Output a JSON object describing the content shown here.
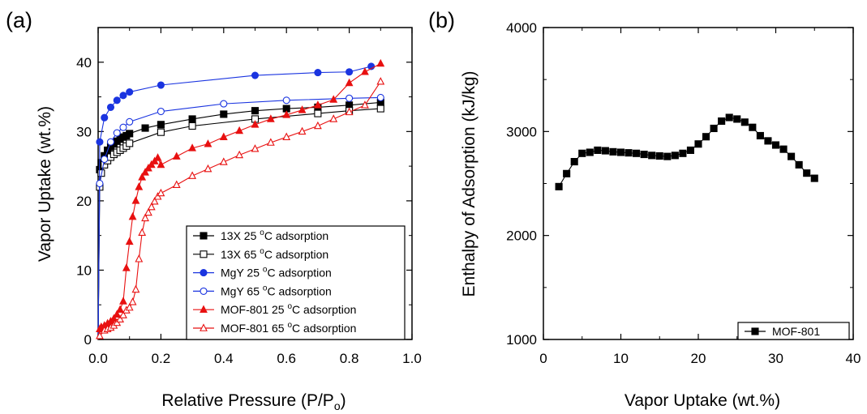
{
  "chart_data": [
    {
      "type": "scatter",
      "panel_label": "(a)",
      "xlabel": "Relative Pressure (P/P",
      "xlabel_sub": "o",
      "xlabel_suffix": ")",
      "ylabel": "Vapor Uptake (wt.%)",
      "xlim": [
        0.0,
        1.0
      ],
      "ylim": [
        0,
        45
      ],
      "xticks": [
        "0.0",
        "0.2",
        "0.4",
        "0.6",
        "0.8",
        "1.0"
      ],
      "yticks": [
        "0",
        "10",
        "20",
        "30",
        "40"
      ],
      "legend_position": "bottom-right",
      "series": [
        {
          "name": "13X 25 °C adsorption",
          "color": "#000000",
          "marker": "square",
          "filled": true,
          "x": [
            0.0,
            0.005,
            0.01,
            0.02,
            0.03,
            0.04,
            0.05,
            0.06,
            0.07,
            0.08,
            0.09,
            0.1,
            0.15,
            0.2,
            0.3,
            0.4,
            0.5,
            0.6,
            0.7,
            0.8,
            0.9
          ],
          "y": [
            0,
            24.5,
            25.5,
            26.5,
            27.3,
            27.8,
            28.2,
            28.6,
            28.9,
            29.2,
            29.4,
            29.7,
            30.5,
            31.0,
            31.8,
            32.5,
            33.0,
            33.3,
            33.5,
            33.8,
            34.2
          ]
        },
        {
          "name": "13X 65 °C adsorption",
          "color": "#000000",
          "marker": "square",
          "filled": false,
          "x": [
            0.0,
            0.005,
            0.01,
            0.02,
            0.03,
            0.04,
            0.05,
            0.06,
            0.07,
            0.08,
            0.09,
            0.1,
            0.2,
            0.3,
            0.5,
            0.7,
            0.8,
            0.9
          ],
          "y": [
            0,
            22.0,
            24.0,
            25.2,
            25.8,
            26.3,
            26.7,
            27.0,
            27.3,
            27.6,
            27.9,
            28.3,
            29.9,
            30.8,
            31.8,
            32.6,
            33.0,
            33.3
          ]
        },
        {
          "name": "MgY 25 °C adsorption",
          "color": "#1a34e0",
          "marker": "circle",
          "filled": true,
          "x": [
            0.0,
            0.005,
            0.02,
            0.04,
            0.06,
            0.08,
            0.1,
            0.2,
            0.5,
            0.7,
            0.8,
            0.87
          ],
          "y": [
            0,
            28.5,
            32.0,
            33.5,
            34.5,
            35.2,
            35.7,
            36.7,
            38.1,
            38.5,
            38.6,
            39.4
          ]
        },
        {
          "name": "MgY 65 °C adsorption",
          "color": "#1a34e0",
          "marker": "circle",
          "filled": false,
          "x": [
            0.0,
            0.005,
            0.02,
            0.04,
            0.06,
            0.08,
            0.1,
            0.2,
            0.4,
            0.6,
            0.8,
            0.9
          ],
          "y": [
            0,
            22.5,
            26.0,
            28.5,
            29.8,
            30.6,
            31.4,
            32.9,
            34.0,
            34.5,
            34.8,
            34.9
          ]
        },
        {
          "name": "MOF-801 25 °C adsorption",
          "color": "#e81010",
          "marker": "triangle",
          "filled": true,
          "x": [
            0.0,
            0.005,
            0.01,
            0.02,
            0.03,
            0.04,
            0.05,
            0.06,
            0.07,
            0.08,
            0.09,
            0.1,
            0.11,
            0.12,
            0.13,
            0.14,
            0.15,
            0.16,
            0.17,
            0.18,
            0.19,
            0.2,
            0.25,
            0.3,
            0.35,
            0.4,
            0.45,
            0.5,
            0.55,
            0.6,
            0.65,
            0.7,
            0.75,
            0.8,
            0.85,
            0.9
          ],
          "y": [
            0,
            1.5,
            1.8,
            2.0,
            2.3,
            2.6,
            3.0,
            3.6,
            4.3,
            5.5,
            10.3,
            14.1,
            17.7,
            20.0,
            22.0,
            23.4,
            24.1,
            24.7,
            25.2,
            25.7,
            26.2,
            25.2,
            26.4,
            27.6,
            28.2,
            29.2,
            30.1,
            31.0,
            31.8,
            32.4,
            33.1,
            33.8,
            34.6,
            37.0,
            38.6,
            39.8
          ]
        },
        {
          "name": "MOF-801 65 °C adsorption",
          "color": "#e81010",
          "marker": "triangle",
          "filled": false,
          "x": [
            0.0,
            0.005,
            0.02,
            0.03,
            0.04,
            0.05,
            0.06,
            0.07,
            0.08,
            0.09,
            0.1,
            0.11,
            0.12,
            0.13,
            0.14,
            0.15,
            0.16,
            0.17,
            0.18,
            0.19,
            0.2,
            0.25,
            0.3,
            0.35,
            0.4,
            0.45,
            0.5,
            0.55,
            0.6,
            0.65,
            0.7,
            0.75,
            0.8,
            0.85,
            0.9
          ],
          "y": [
            0,
            0.5,
            1.3,
            1.5,
            1.7,
            2.0,
            2.4,
            2.9,
            3.5,
            4.2,
            4.6,
            5.4,
            7.2,
            11.6,
            15.4,
            17.5,
            18.3,
            19.1,
            19.9,
            20.6,
            21.1,
            22.3,
            23.6,
            24.6,
            25.6,
            26.6,
            27.5,
            28.4,
            29.2,
            30.0,
            30.8,
            31.8,
            32.8,
            33.8,
            37.2
          ]
        }
      ]
    },
    {
      "type": "line",
      "panel_label": "(b)",
      "xlabel": "Vapor Uptake (wt.%)",
      "ylabel": "Enthalpy of Adsorption (kJ/kg)",
      "xlim": [
        0,
        40
      ],
      "ylim": [
        1000,
        4000
      ],
      "xticks": [
        "0",
        "10",
        "20",
        "30",
        "40"
      ],
      "yticks": [
        "1000",
        "2000",
        "3000",
        "4000"
      ],
      "legend_position": "bottom-right",
      "series": [
        {
          "name": "MOF-801",
          "color": "#000000",
          "marker": "square",
          "filled": true,
          "x": [
            2,
            3,
            4,
            5,
            6,
            7,
            8,
            9,
            10,
            11,
            12,
            13,
            14,
            15,
            16,
            17,
            18,
            19,
            20,
            21,
            22,
            23,
            24,
            25,
            26,
            27,
            28,
            29,
            30,
            31,
            32,
            33,
            34,
            35
          ],
          "y": [
            2470,
            2595,
            2710,
            2790,
            2800,
            2820,
            2815,
            2805,
            2800,
            2795,
            2790,
            2780,
            2770,
            2765,
            2760,
            2770,
            2790,
            2820,
            2880,
            2950,
            3030,
            3100,
            3135,
            3120,
            3090,
            3040,
            2960,
            2910,
            2870,
            2830,
            2760,
            2680,
            2600,
            2550
          ]
        }
      ]
    }
  ]
}
